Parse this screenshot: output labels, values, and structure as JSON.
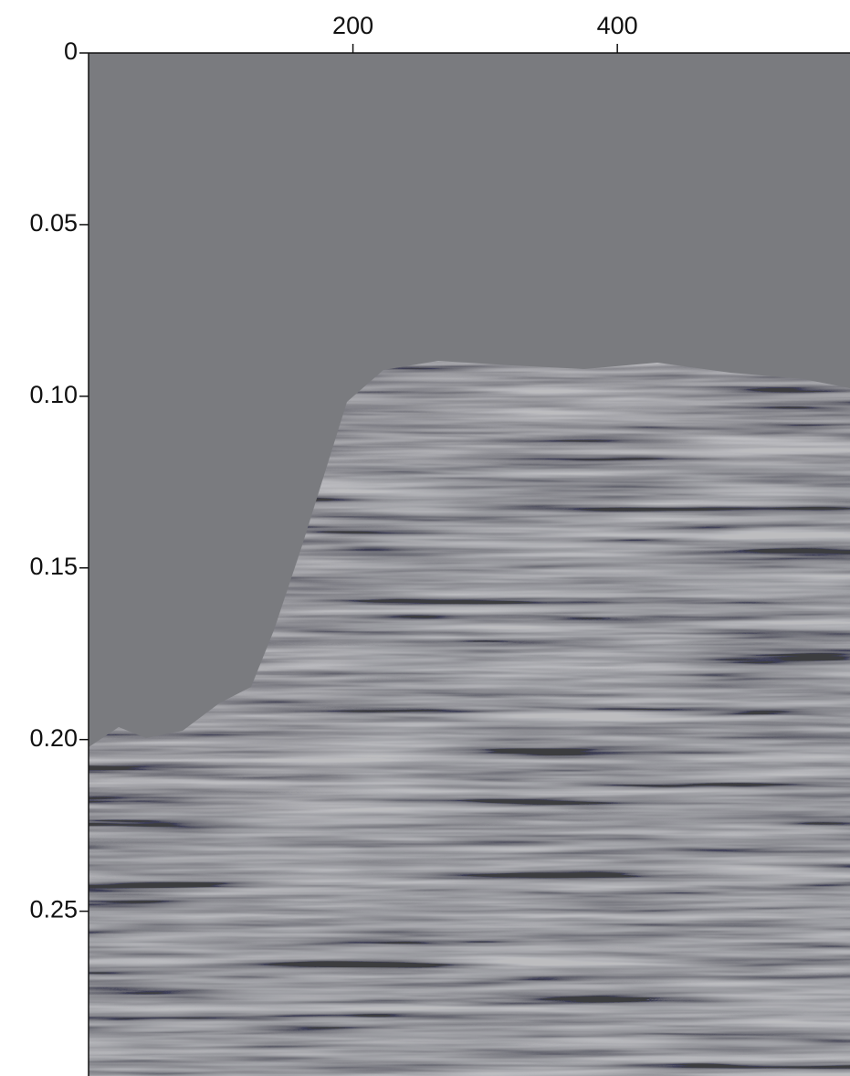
{
  "chart_data": {
    "type": "image",
    "xlim": [
      0,
      576
    ],
    "xticks": [
      200,
      400
    ],
    "ylim": [
      0,
      0.298
    ],
    "yticks": [
      0,
      0.05,
      {
        "value": 0.1,
        "label": "0.10"
      },
      0.15,
      {
        "value": 0.2,
        "label": "0.20"
      },
      0.25
    ],
    "color": "#7a7b7f"
  }
}
